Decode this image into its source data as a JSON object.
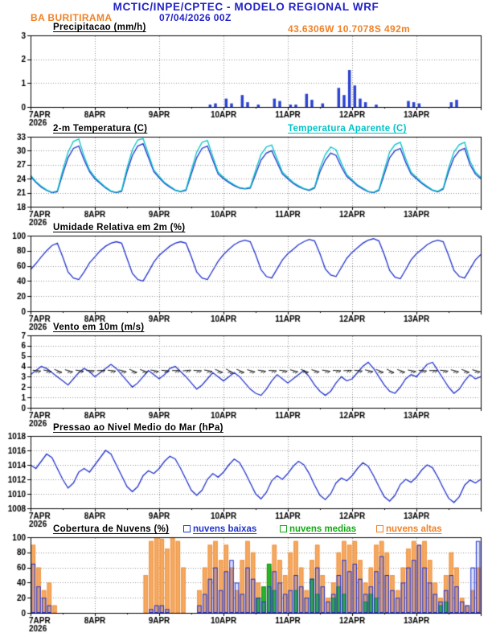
{
  "header": {
    "title": "MCTIC/INPE/CPTEC - MODELO REGIONAL WRF",
    "station": "BA BURITIRAMA",
    "run": "07/04/2026 00Z",
    "location": "43.6306W 10.7078S 492m"
  },
  "colors": {
    "header_blue": "#2323c8",
    "orange": "#f08228",
    "blue": "#2233cc",
    "cyan": "#00c3c8",
    "green": "#14a814",
    "grid": "#909090"
  },
  "x_axis": {
    "day_labels": [
      "7APR",
      "8APR",
      "9APR",
      "10APR",
      "11APR",
      "12APR",
      "13APR"
    ],
    "year_label": "2026",
    "total_hours": 168,
    "step_hours": 2
  },
  "chart_data": [
    {
      "id": "precipitation",
      "type": "bar",
      "title": "Precipitacao (mm/h)",
      "ylim": [
        0,
        3
      ],
      "yticks": [
        0,
        1,
        2,
        3
      ],
      "series": [
        {
          "name": "Precipitacao (mm/h)",
          "render": "bars",
          "bar_width": 3.5,
          "fill": "#2b43cf",
          "values": [
            0,
            0,
            0,
            0,
            0,
            0,
            0,
            0,
            0,
            0,
            0,
            0,
            0,
            0,
            0,
            0,
            0,
            0,
            0,
            0,
            0,
            0,
            0,
            0,
            0,
            0,
            0,
            0,
            0,
            0,
            0,
            0,
            0,
            0.1,
            0.15,
            0,
            0.35,
            0.15,
            0,
            0.5,
            0.2,
            0,
            0.1,
            0,
            0,
            0.35,
            0.25,
            0,
            0.1,
            0.1,
            0,
            0.55,
            0.3,
            0,
            0.15,
            0,
            0,
            0.8,
            0.5,
            1.55,
            0.9,
            0.35,
            0.2,
            0,
            0.1,
            0,
            0,
            0,
            0,
            0,
            0.25,
            0.2,
            0.15,
            0,
            0,
            0,
            0,
            0,
            0.2,
            0.3,
            0,
            0,
            0,
            0
          ]
        }
      ]
    },
    {
      "id": "temperature-2m",
      "type": "line",
      "title": "2-m Temperatura (C)",
      "legend_right": "Temperatura Aparente (C)",
      "ylim": [
        18,
        33
      ],
      "yticks": [
        18,
        21,
        24,
        27,
        30,
        33
      ],
      "series": [
        {
          "name": "2-m Temperatura (C)",
          "render": "line",
          "stroke": "#2233cc",
          "values": [
            24.5,
            23.2,
            22.2,
            21.5,
            21.0,
            21.2,
            25.0,
            28.5,
            30.5,
            31.0,
            28.0,
            25.5,
            24.0,
            23.0,
            22.0,
            21.3,
            21.0,
            21.3,
            25.5,
            29.0,
            31.0,
            31.5,
            28.5,
            25.5,
            24.2,
            23.0,
            22.2,
            21.5,
            21.2,
            21.5,
            25.0,
            28.5,
            30.5,
            31.0,
            28.0,
            25.0,
            24.0,
            23.2,
            22.5,
            22.0,
            21.8,
            22.0,
            25.0,
            28.0,
            29.5,
            30.0,
            27.5,
            25.0,
            24.0,
            23.0,
            22.3,
            21.8,
            21.5,
            22.0,
            25.5,
            28.0,
            29.5,
            29.0,
            26.5,
            24.5,
            23.5,
            22.5,
            21.8,
            21.2,
            21.0,
            21.5,
            25.0,
            28.5,
            30.0,
            30.5,
            27.5,
            25.0,
            24.0,
            23.0,
            22.2,
            21.5,
            21.2,
            21.8,
            25.5,
            28.5,
            30.0,
            30.5,
            27.0,
            25.0,
            24.0
          ]
        },
        {
          "name": "Temperatura Aparente (C)",
          "render": "line",
          "stroke": "#00c3c8",
          "values": [
            24.8,
            23.4,
            22.4,
            21.6,
            21.1,
            21.4,
            25.8,
            29.7,
            32.0,
            32.5,
            28.8,
            25.9,
            24.3,
            23.2,
            22.2,
            21.4,
            21.1,
            21.5,
            26.3,
            30.2,
            32.3,
            32.6,
            29.3,
            25.9,
            24.5,
            23.2,
            22.4,
            21.6,
            21.3,
            21.7,
            25.8,
            29.7,
            31.8,
            32.2,
            28.8,
            25.4,
            24.3,
            23.4,
            22.7,
            22.1,
            21.9,
            22.2,
            25.8,
            29.2,
            30.8,
            31.2,
            28.3,
            25.4,
            24.3,
            23.2,
            22.5,
            21.9,
            21.6,
            22.2,
            26.3,
            29.2,
            30.8,
            30.2,
            27.3,
            24.9,
            23.8,
            22.7,
            22.0,
            21.3,
            21.1,
            21.7,
            25.8,
            29.7,
            31.3,
            31.8,
            28.3,
            25.4,
            24.3,
            23.2,
            22.4,
            21.6,
            21.3,
            22.0,
            26.3,
            29.7,
            31.3,
            31.8,
            27.8,
            25.4,
            24.3
          ]
        }
      ]
    },
    {
      "id": "relative-humidity-2m",
      "type": "line",
      "title": "Umidade Relativa em 2m (%)",
      "ylim": [
        0,
        100
      ],
      "yticks": [
        0,
        20,
        40,
        60,
        80,
        100
      ],
      "series": [
        {
          "name": "Umidade Relativa em 2m (%)",
          "render": "line",
          "stroke": "#2233cc",
          "values": [
            55,
            63,
            72,
            80,
            87,
            90,
            72,
            52,
            44,
            42,
            52,
            64,
            72,
            80,
            86,
            90,
            92,
            90,
            70,
            50,
            42,
            40,
            52,
            65,
            74,
            80,
            86,
            90,
            92,
            90,
            72,
            52,
            44,
            42,
            54,
            66,
            75,
            82,
            88,
            92,
            94,
            92,
            75,
            55,
            46,
            44,
            56,
            68,
            76,
            82,
            88,
            92,
            95,
            93,
            76,
            56,
            48,
            46,
            58,
            70,
            78,
            84,
            90,
            94,
            96,
            93,
            75,
            54,
            45,
            43,
            55,
            68,
            76,
            82,
            88,
            92,
            94,
            92,
            74,
            54,
            46,
            44,
            56,
            68,
            75
          ]
        }
      ]
    },
    {
      "id": "wind-10m",
      "type": "line+barbs",
      "title": "Vento em 10m (m/s)",
      "ylim": [
        0,
        7
      ],
      "yticks": [
        0,
        1,
        2,
        3,
        4,
        5,
        6,
        7
      ],
      "series": [
        {
          "name": "Vento em 10m (m/s)",
          "render": "line",
          "stroke": "#2233cc",
          "values": [
            3.2,
            3.6,
            4.0,
            3.8,
            3.4,
            3.0,
            2.6,
            2.2,
            2.8,
            3.4,
            3.8,
            3.5,
            3.0,
            3.4,
            3.8,
            4.2,
            3.8,
            3.2,
            2.6,
            2.0,
            2.4,
            3.0,
            3.6,
            3.2,
            2.8,
            3.2,
            3.8,
            4.0,
            3.5,
            3.0,
            2.4,
            1.8,
            2.2,
            2.8,
            3.4,
            3.0,
            2.6,
            3.0,
            3.4,
            3.0,
            2.4,
            1.8,
            1.4,
            1.2,
            1.8,
            2.6,
            3.2,
            2.8,
            2.4,
            2.8,
            3.2,
            3.6,
            3.0,
            2.2,
            1.6,
            1.2,
            1.6,
            2.4,
            3.0,
            2.6,
            2.8,
            3.4,
            4.0,
            4.4,
            3.8,
            3.0,
            2.2,
            1.6,
            1.4,
            2.0,
            2.8,
            3.2,
            3.0,
            3.6,
            4.2,
            4.4,
            3.6,
            2.8,
            2.0,
            1.4,
            1.8,
            2.6,
            3.2,
            2.8,
            3.0
          ]
        }
      ],
      "barbs": {
        "y_value": 3.6,
        "step_hours": 4,
        "directions_deg": [
          95,
          100,
          110,
          105,
          98,
          92,
          88,
          96,
          104,
          112,
          108,
          100,
          95,
          90,
          85,
          92,
          100,
          110,
          118,
          112,
          105,
          98,
          92,
          96,
          104,
          110,
          105,
          98,
          92,
          88,
          95,
          102,
          110,
          115,
          108,
          100,
          94,
          90,
          96,
          104,
          110,
          105
        ]
      }
    },
    {
      "id": "mslp",
      "type": "line",
      "title": "Pressao ao Nivel Medio do Mar (hPa)",
      "ylim": [
        1008,
        1018
      ],
      "yticks": [
        1008,
        1010,
        1012,
        1014,
        1016,
        1018
      ],
      "series": [
        {
          "name": "Pressao ao Nivel Medio do Mar (hPa)",
          "render": "line",
          "stroke": "#2233cc",
          "values": [
            1014.0,
            1013.5,
            1014.5,
            1015.5,
            1015.0,
            1013.5,
            1012.0,
            1010.8,
            1011.5,
            1013.0,
            1013.5,
            1013.0,
            1014.0,
            1015.0,
            1016.0,
            1015.5,
            1014.0,
            1012.5,
            1011.0,
            1010.3,
            1011.0,
            1012.5,
            1013.2,
            1012.8,
            1013.5,
            1014.5,
            1015.2,
            1014.8,
            1013.5,
            1012.0,
            1010.5,
            1009.8,
            1010.5,
            1012.0,
            1012.8,
            1012.3,
            1013.0,
            1014.0,
            1014.8,
            1014.3,
            1013.0,
            1011.5,
            1010.0,
            1009.3,
            1010.2,
            1011.8,
            1012.5,
            1012.0,
            1012.8,
            1013.8,
            1014.5,
            1014.0,
            1012.8,
            1011.2,
            1009.8,
            1009.2,
            1010.0,
            1011.5,
            1012.2,
            1011.8,
            1012.5,
            1013.5,
            1014.3,
            1013.8,
            1012.5,
            1011.0,
            1009.6,
            1009.0,
            1009.8,
            1011.3,
            1012.0,
            1011.6,
            1012.3,
            1013.3,
            1014.0,
            1013.6,
            1012.3,
            1010.8,
            1009.4,
            1008.8,
            1009.6,
            1011.2,
            1011.9,
            1011.5,
            1012.0
          ]
        }
      ]
    },
    {
      "id": "cloud-cover",
      "type": "bar",
      "title": "Cobertura de Nuvens (%)",
      "ylim": [
        0,
        100
      ],
      "yticks": [
        0,
        20,
        40,
        60,
        80,
        100
      ],
      "legend": [
        {
          "label": "nuvens baixas",
          "color": "#2233cc"
        },
        {
          "label": "nuvens medias",
          "color": "#14a814"
        },
        {
          "label": "nuvens altas",
          "color": "#f08228"
        }
      ],
      "series": [
        {
          "name": "nuvens altas",
          "render": "bars",
          "bar_width": 5.5,
          "fill": "#f5a961",
          "stroke": "#ee9440",
          "values": [
            90,
            60,
            30,
            40,
            10,
            0,
            0,
            0,
            0,
            0,
            0,
            0,
            0,
            0,
            0,
            0,
            0,
            0,
            0,
            0,
            0,
            50,
            95,
            100,
            98,
            85,
            100,
            95,
            60,
            0,
            0,
            30,
            60,
            90,
            95,
            70,
            90,
            60,
            30,
            70,
            95,
            80,
            40,
            20,
            60,
            90,
            70,
            50,
            80,
            95,
            60,
            30,
            70,
            90,
            50,
            20,
            40,
            80,
            95,
            90,
            95,
            70,
            40,
            60,
            90,
            95,
            80,
            50,
            30,
            60,
            85,
            95,
            90,
            95,
            70,
            40,
            20,
            50,
            80,
            60,
            20,
            10,
            30,
            60
          ]
        },
        {
          "name": "nuvens medias",
          "render": "bars",
          "bar_width": 5.5,
          "fill": "#2db42d",
          "stroke": "#119611",
          "values": [
            0,
            0,
            0,
            0,
            0,
            0,
            0,
            0,
            0,
            0,
            0,
            0,
            0,
            0,
            0,
            0,
            0,
            0,
            0,
            0,
            0,
            0,
            0,
            0,
            0,
            0,
            0,
            0,
            0,
            0,
            0,
            0,
            0,
            0,
            0,
            0,
            0,
            0,
            0,
            0,
            0,
            0,
            20,
            35,
            65,
            30,
            0,
            0,
            0,
            30,
            0,
            0,
            45,
            25,
            0,
            0,
            20,
            35,
            25,
            0,
            0,
            0,
            15,
            25,
            20,
            0,
            0,
            0,
            0,
            0,
            0,
            0,
            0,
            0,
            0,
            0,
            10,
            15,
            0,
            0,
            0,
            0,
            0,
            0
          ]
        },
        {
          "name": "nuvens baixas",
          "render": "bars",
          "bar_width": 5.5,
          "fill": "rgba(70,95,225,0.18)",
          "stroke": "#2233cc",
          "values": [
            65,
            35,
            20,
            10,
            0,
            0,
            0,
            0,
            0,
            0,
            0,
            0,
            0,
            0,
            0,
            0,
            0,
            0,
            0,
            0,
            0,
            0,
            5,
            10,
            10,
            5,
            0,
            0,
            0,
            0,
            0,
            10,
            25,
            45,
            60,
            30,
            55,
            70,
            40,
            25,
            60,
            45,
            20,
            15,
            35,
            55,
            40,
            25,
            30,
            50,
            35,
            20,
            45,
            60,
            35,
            15,
            25,
            50,
            70,
            55,
            65,
            45,
            25,
            35,
            55,
            75,
            50,
            30,
            20,
            40,
            60,
            70,
            90,
            60,
            40,
            25,
            15,
            30,
            50,
            35,
            15,
            10,
            60,
            95
          ]
        }
      ]
    }
  ]
}
